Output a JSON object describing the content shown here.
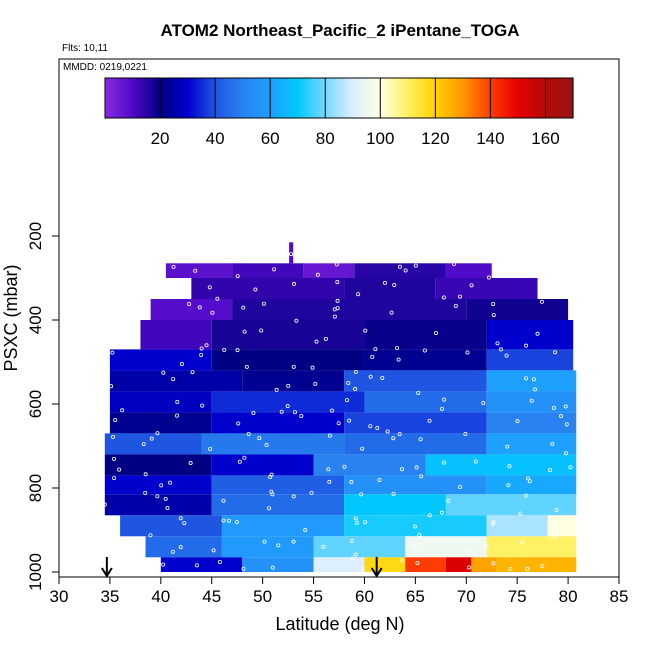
{
  "chart_data": {
    "type": "heatmap",
    "title": "ATOM2 Northeast_Pacific_2 iPentane_TOGA",
    "flights_label": "Flts: 10,11",
    "dates_label": "MMDD: 0219,0221",
    "xlabel": "Latitude (deg N)",
    "ylabel": "PSXC (mbar)",
    "xlim": [
      30,
      85
    ],
    "ylim": [
      1000,
      0
    ],
    "x_ticks": [
      "30",
      "35",
      "40",
      "45",
      "50",
      "55",
      "60",
      "65",
      "70",
      "75",
      "80",
      "85"
    ],
    "y_ticks": [
      "200",
      "400",
      "600",
      "800",
      "1000"
    ],
    "colorbar": {
      "range": [
        0,
        170
      ],
      "ticks": [
        "20",
        "40",
        "60",
        "80",
        "100",
        "120",
        "140",
        "160"
      ]
    },
    "arrows_at_latitude": [
      34.7,
      61.2
    ],
    "pressure_bands": [
      {
        "p_range": [
          215,
          265
        ],
        "segments": [
          {
            "lat": [
              52.6,
              53.0
            ],
            "value": 10
          }
        ]
      },
      {
        "p_range": [
          265,
          300
        ],
        "segments": [
          {
            "lat": [
              40.5,
              47.0
            ],
            "value": 8
          },
          {
            "lat": [
              47.0,
              54.0
            ],
            "value": 12
          },
          {
            "lat": [
              54.0,
              59.0
            ],
            "value": 6
          },
          {
            "lat": [
              59.0,
              68.0
            ],
            "value": 15
          },
          {
            "lat": [
              68.0,
              72.5
            ],
            "value": 10
          }
        ]
      },
      {
        "p_range": [
          300,
          350
        ],
        "segments": [
          {
            "lat": [
              43.0,
              58.0
            ],
            "value": 14
          },
          {
            "lat": [
              58.0,
              67.0
            ],
            "value": 16
          },
          {
            "lat": [
              67.0,
              77.0
            ],
            "value": 13
          }
        ]
      },
      {
        "p_range": [
          350,
          400
        ],
        "segments": [
          {
            "lat": [
              39.0,
              47.0
            ],
            "value": 9
          },
          {
            "lat": [
              47.0,
              70.0
            ],
            "value": 16
          },
          {
            "lat": [
              70.0,
              80.0
            ],
            "value": 18
          }
        ]
      },
      {
        "p_range": [
          400,
          470
        ],
        "segments": [
          {
            "lat": [
              38.0,
              45.0
            ],
            "value": 12
          },
          {
            "lat": [
              45.0,
              60.0
            ],
            "value": 17
          },
          {
            "lat": [
              60.0,
              72.0
            ],
            "value": 19
          },
          {
            "lat": [
              72.0,
              80.5
            ],
            "value": 30
          }
        ]
      },
      {
        "p_range": [
          470,
          520
        ],
        "segments": [
          {
            "lat": [
              35.0,
              45.0
            ],
            "value": 30
          },
          {
            "lat": [
              45.0,
              60.0
            ],
            "value": 20
          },
          {
            "lat": [
              60.0,
              72.0
            ],
            "value": 22
          },
          {
            "lat": [
              72.0,
              80.5
            ],
            "value": 38
          }
        ]
      },
      {
        "p_range": [
          520,
          570
        ],
        "segments": [
          {
            "lat": [
              35.0,
              48.0
            ],
            "value": 25
          },
          {
            "lat": [
              48.0,
              58.0
            ],
            "value": 22
          },
          {
            "lat": [
              58.0,
              72.0
            ],
            "value": 40
          },
          {
            "lat": [
              72.0,
              80.8
            ],
            "value": 60
          }
        ]
      },
      {
        "p_range": [
          570,
          620
        ],
        "segments": [
          {
            "lat": [
              35.0,
              45.0
            ],
            "value": 28
          },
          {
            "lat": [
              45.0,
              60.0
            ],
            "value": 35
          },
          {
            "lat": [
              60.0,
              72.0
            ],
            "value": 45
          },
          {
            "lat": [
              72.0,
              80.8
            ],
            "value": 55
          }
        ]
      },
      {
        "p_range": [
          620,
          670
        ],
        "segments": [
          {
            "lat": [
              35.0,
              45.0
            ],
            "value": 22
          },
          {
            "lat": [
              45.0,
              58.0
            ],
            "value": 30
          },
          {
            "lat": [
              58.0,
              72.0
            ],
            "value": 38
          },
          {
            "lat": [
              72.0,
              80.8
            ],
            "value": 50
          }
        ]
      },
      {
        "p_range": [
          670,
          720
        ],
        "segments": [
          {
            "lat": [
              34.5,
              44.0
            ],
            "value": 40
          },
          {
            "lat": [
              44.0,
              58.0
            ],
            "value": 48
          },
          {
            "lat": [
              58.0,
              72.0
            ],
            "value": 45
          },
          {
            "lat": [
              72.0,
              80.8
            ],
            "value": 60
          }
        ]
      },
      {
        "p_range": [
          720,
          770
        ],
        "segments": [
          {
            "lat": [
              34.5,
              45.0
            ],
            "value": 20
          },
          {
            "lat": [
              45.0,
              55.0
            ],
            "value": 30
          },
          {
            "lat": [
              55.0,
              66.0
            ],
            "value": 50
          },
          {
            "lat": [
              66.0,
              80.8
            ],
            "value": 68
          }
        ]
      },
      {
        "p_range": [
          770,
          815
        ],
        "segments": [
          {
            "lat": [
              34.5,
              45.0
            ],
            "value": 30
          },
          {
            "lat": [
              45.0,
              58.0
            ],
            "value": 42
          },
          {
            "lat": [
              58.0,
              72.0
            ],
            "value": 55
          },
          {
            "lat": [
              72.0,
              80.8
            ],
            "value": 62
          }
        ]
      },
      {
        "p_range": [
          815,
          865
        ],
        "segments": [
          {
            "lat": [
              34.5,
              45.0
            ],
            "value": 25
          },
          {
            "lat": [
              45.0,
              58.0
            ],
            "value": 45
          },
          {
            "lat": [
              58.0,
              68.0
            ],
            "value": 70
          },
          {
            "lat": [
              68.0,
              80.8
            ],
            "value": 78
          }
        ]
      },
      {
        "p_range": [
          865,
          915
        ],
        "segments": [
          {
            "lat": [
              36.0,
              46.0
            ],
            "value": 40
          },
          {
            "lat": [
              46.0,
              58.0
            ],
            "value": 58
          },
          {
            "lat": [
              58.0,
              72.0
            ],
            "value": 72
          },
          {
            "lat": [
              72.0,
              78.0
            ],
            "value": 85
          },
          {
            "lat": [
              78.0,
              80.8
            ],
            "value": 100
          }
        ]
      },
      {
        "p_range": [
          915,
          965
        ],
        "segments": [
          {
            "lat": [
              38.5,
              46.0
            ],
            "value": 45
          },
          {
            "lat": [
              46.0,
              55.0
            ],
            "value": 58
          },
          {
            "lat": [
              55.0,
              64.0
            ],
            "value": 78
          },
          {
            "lat": [
              64.0,
              72.0
            ],
            "value": 95
          },
          {
            "lat": [
              72.0,
              80.8
            ],
            "value": 110
          }
        ]
      },
      {
        "p_range": [
          965,
          1000
        ],
        "segments": [
          {
            "lat": [
              40.0,
              48.0
            ],
            "value": 30
          },
          {
            "lat": [
              48.0,
              55.0
            ],
            "value": 55
          },
          {
            "lat": [
              55.0,
              60.0
            ],
            "value": 90
          },
          {
            "lat": [
              60.0,
              64.0
            ],
            "value": 118
          },
          {
            "lat": [
              64.0,
              68.0
            ],
            "value": 140
          },
          {
            "lat": [
              68.0,
              70.5
            ],
            "value": 152
          },
          {
            "lat": [
              70.5,
              73.0
            ],
            "value": 128
          },
          {
            "lat": [
              73.0,
              80.8
            ],
            "value": 125
          }
        ]
      }
    ]
  }
}
